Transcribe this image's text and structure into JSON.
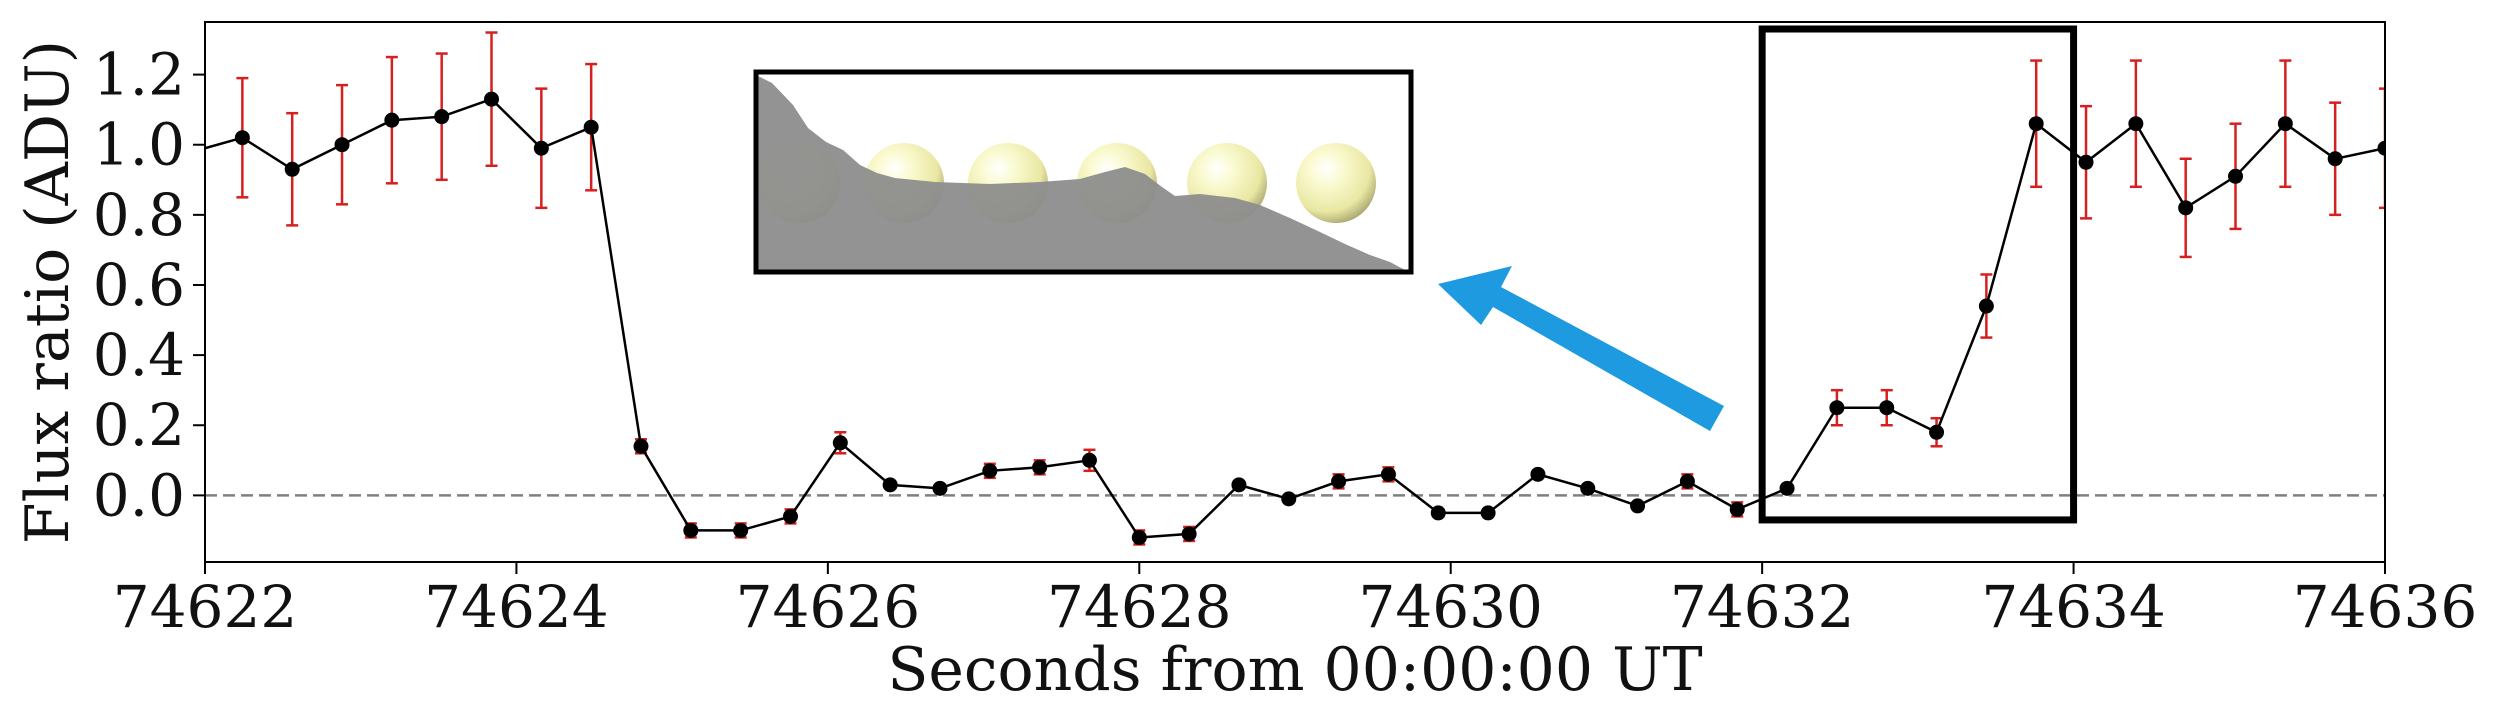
{
  "chart_data": {
    "type": "line",
    "xlabel": "Seconds from 00:00:00 UT",
    "ylabel": "Flux ratio (ADU)",
    "xlim": [
      74622,
      74636
    ],
    "ylim": [
      -0.19,
      1.35
    ],
    "xticks": [
      74622,
      74624,
      74626,
      74628,
      74630,
      74632,
      74634,
      74636
    ],
    "yticks": [
      0.0,
      0.2,
      0.4,
      0.6,
      0.8,
      1.0,
      1.2
    ],
    "ytick_labels": [
      "0.0",
      "0.2",
      "0.4",
      "0.6",
      "0.8",
      "1.0",
      "1.2"
    ],
    "reference_line": {
      "y": 0.0,
      "style": "dashed",
      "color": "#808080"
    },
    "series": [
      {
        "line_color": "#000000",
        "marker_color": "#000000",
        "errorbar_color": "#d62020",
        "x": [
          74621.92,
          74622.24,
          74622.56,
          74622.88,
          74623.2,
          74623.52,
          74623.84,
          74624.16,
          74624.48,
          74624.8,
          74625.12,
          74625.44,
          74625.76,
          74626.08,
          74626.4,
          74626.72,
          74627.04,
          74627.36,
          74627.68,
          74628.0,
          74628.32,
          74628.64,
          74628.96,
          74629.28,
          74629.6,
          74629.92,
          74630.24,
          74630.56,
          74630.88,
          74631.2,
          74631.52,
          74631.84,
          74632.16,
          74632.48,
          74632.8,
          74633.12,
          74633.44,
          74633.76,
          74634.08,
          74634.4,
          74634.72,
          74635.04,
          74635.36,
          74635.68,
          74636.0
        ],
        "y": [
          0.98,
          1.02,
          0.93,
          1.0,
          1.07,
          1.08,
          1.13,
          0.99,
          1.05,
          0.14,
          -0.1,
          -0.1,
          -0.06,
          0.15,
          0.03,
          0.02,
          0.07,
          0.08,
          0.1,
          -0.12,
          -0.11,
          0.03,
          -0.01,
          0.04,
          0.06,
          -0.05,
          -0.05,
          0.06,
          0.02,
          -0.03,
          0.04,
          -0.04,
          0.02,
          0.25,
          0.25,
          0.18,
          0.54,
          1.06,
          0.95,
          1.06,
          0.82,
          0.91,
          1.06,
          0.96,
          0.99
        ],
        "yerr": [
          0.17,
          0.17,
          0.16,
          0.17,
          0.18,
          0.18,
          0.19,
          0.17,
          0.18,
          0.02,
          0.02,
          0.02,
          0.02,
          0.03,
          0.01,
          0.01,
          0.02,
          0.02,
          0.03,
          0.02,
          0.02,
          0.01,
          0.01,
          0.02,
          0.02,
          0.01,
          0.01,
          0.01,
          0.01,
          0.01,
          0.02,
          0.02,
          0.01,
          0.05,
          0.05,
          0.04,
          0.09,
          0.18,
          0.16,
          0.18,
          0.14,
          0.15,
          0.18,
          0.16,
          0.17
        ]
      }
    ],
    "annotations": [
      {
        "type": "highlight-box",
        "x_range": [
          74632,
          74634
        ],
        "y_range": [
          -0.07,
          1.33
        ],
        "color": "#000000"
      },
      {
        "type": "arrow",
        "color": "#1e9be0",
        "from": "highlight-box",
        "to": "inset"
      },
      {
        "type": "inset-illustration",
        "description": "row of six pale-yellow spheres partially occulted by a grey silhouette",
        "sphere_color": "#f3f2b8",
        "silhouette_color": "#8d8d8d",
        "sphere_count": 6
      }
    ],
    "grid": false,
    "legend": "none"
  }
}
